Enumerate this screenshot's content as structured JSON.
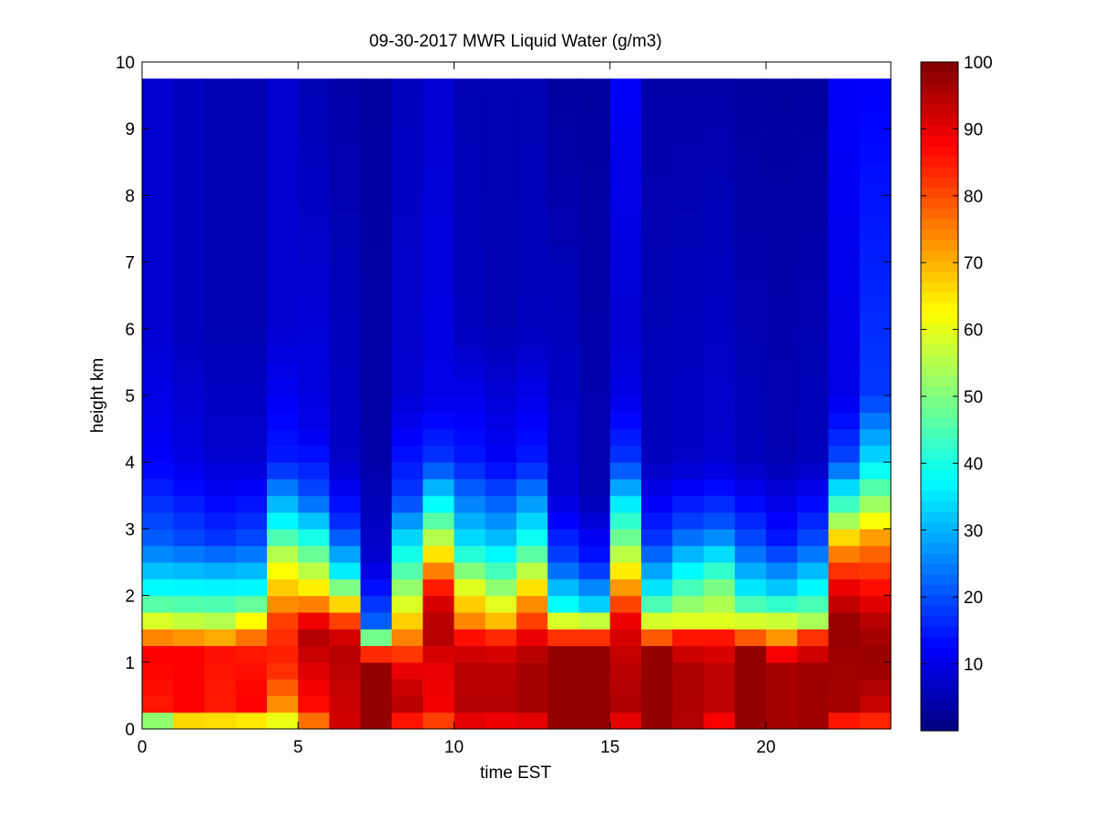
{
  "chart_data": {
    "type": "heatmap",
    "title": "09-30-2017 MWR Liquid Water (g/m3)",
    "xlabel": "time EST",
    "ylabel": "height km",
    "xlim": [
      0,
      24
    ],
    "ylim": [
      0,
      10
    ],
    "x_ticks": [
      0,
      5,
      10,
      15,
      20
    ],
    "y_ticks": [
      0,
      1,
      2,
      3,
      4,
      5,
      6,
      7,
      8,
      9,
      10
    ],
    "colorbar": {
      "range": [
        0,
        100
      ],
      "ticks": [
        10,
        20,
        30,
        40,
        50,
        60,
        70,
        80,
        90,
        100
      ],
      "colormap": "jet"
    },
    "grid": false,
    "x_centers": [
      0.5,
      1.5,
      2.5,
      3.5,
      4.5,
      5.5,
      6.5,
      7.5,
      8.5,
      9.5,
      10.5,
      11.5,
      12.5,
      13.5,
      14.5,
      15.5,
      16.5,
      17.5,
      18.5,
      19.5,
      20.5,
      21.5,
      22.5,
      23.5
    ],
    "data_top_km": 9.75,
    "columns": [
      {
        "p": [
          [
            0,
            12
          ],
          [
            0.1,
            45
          ],
          [
            0.25,
            85
          ],
          [
            1.2,
            88
          ],
          [
            1.5,
            65
          ],
          [
            2.0,
            40
          ],
          [
            2.8,
            22
          ],
          [
            4.0,
            12
          ],
          [
            6.0,
            8
          ],
          [
            9.75,
            8
          ]
        ]
      },
      {
        "p": [
          [
            0,
            38
          ],
          [
            0.1,
            62
          ],
          [
            0.25,
            88
          ],
          [
            1.2,
            88
          ],
          [
            1.5,
            62
          ],
          [
            2.0,
            40
          ],
          [
            2.8,
            20
          ],
          [
            4.0,
            10
          ],
          [
            6.0,
            6
          ],
          [
            9.75,
            6
          ]
        ]
      },
      {
        "p": [
          [
            0,
            38
          ],
          [
            0.1,
            62
          ],
          [
            0.25,
            85
          ],
          [
            1.2,
            86
          ],
          [
            1.5,
            60
          ],
          [
            2.0,
            40
          ],
          [
            2.8,
            18
          ],
          [
            4.0,
            8
          ],
          [
            6.0,
            5
          ],
          [
            9.75,
            5
          ]
        ]
      },
      {
        "p": [
          [
            0,
            35
          ],
          [
            0.1,
            60
          ],
          [
            0.25,
            88
          ],
          [
            1.2,
            85
          ],
          [
            1.5,
            70
          ],
          [
            2.0,
            40
          ],
          [
            2.8,
            20
          ],
          [
            4.0,
            8
          ],
          [
            6.0,
            5
          ],
          [
            9.75,
            5
          ]
        ]
      },
      {
        "p": [
          [
            0,
            45
          ],
          [
            0.2,
            70
          ],
          [
            0.6,
            78
          ],
          [
            1.0,
            85
          ],
          [
            1.6,
            82
          ],
          [
            2.0,
            70
          ],
          [
            2.5,
            60
          ],
          [
            3.0,
            40
          ],
          [
            4.0,
            15
          ],
          [
            6.0,
            8
          ],
          [
            9.75,
            8
          ]
        ]
      },
      {
        "p": [
          [
            0,
            35
          ],
          [
            0.15,
            85
          ],
          [
            0.8,
            90
          ],
          [
            1.5,
            96
          ],
          [
            2.0,
            68
          ],
          [
            2.8,
            42
          ],
          [
            3.5,
            20
          ],
          [
            4.5,
            10
          ],
          [
            9.75,
            5
          ]
        ]
      },
      {
        "p": [
          [
            0,
            50
          ],
          [
            0.1,
            92
          ],
          [
            1.3,
            95
          ],
          [
            1.7,
            78
          ],
          [
            2.3,
            38
          ],
          [
            3.0,
            18
          ],
          [
            4.0,
            7
          ],
          [
            9.75,
            4
          ]
        ]
      },
      {
        "p": [
          [
            0,
            65
          ],
          [
            0.1,
            98
          ],
          [
            1.0,
            98
          ],
          [
            1.2,
            75
          ],
          [
            1.4,
            45
          ],
          [
            1.6,
            22
          ],
          [
            2.5,
            8
          ],
          [
            4.0,
            4
          ],
          [
            9.75,
            3
          ]
        ]
      },
      {
        "p": [
          [
            0,
            70
          ],
          [
            0.2,
            95
          ],
          [
            0.8,
            92
          ],
          [
            1.2,
            80
          ],
          [
            1.6,
            68
          ],
          [
            2.0,
            55
          ],
          [
            2.6,
            40
          ],
          [
            3.5,
            18
          ],
          [
            5.0,
            8
          ],
          [
            9.75,
            6
          ]
        ]
      },
      {
        "p": [
          [
            0,
            70
          ],
          [
            0.2,
            88
          ],
          [
            1.0,
            90
          ],
          [
            1.5,
            96
          ],
          [
            2.0,
            90
          ],
          [
            2.5,
            70
          ],
          [
            3.0,
            50
          ],
          [
            4.0,
            18
          ],
          [
            5.0,
            10
          ],
          [
            9.75,
            8
          ]
        ]
      },
      {
        "p": [
          [
            0,
            65
          ],
          [
            0.15,
            95
          ],
          [
            1.0,
            94
          ],
          [
            1.3,
            90
          ],
          [
            1.6,
            75
          ],
          [
            2.0,
            64
          ],
          [
            2.8,
            35
          ],
          [
            4.0,
            15
          ],
          [
            6.0,
            6
          ],
          [
            9.75,
            5
          ]
        ]
      },
      {
        "p": [
          [
            0,
            60
          ],
          [
            0.15,
            95
          ],
          [
            1.0,
            94
          ],
          [
            1.3,
            88
          ],
          [
            1.6,
            70
          ],
          [
            2.0,
            55
          ],
          [
            2.8,
            32
          ],
          [
            4.0,
            12
          ],
          [
            6.0,
            5
          ],
          [
            9.75,
            5
          ]
        ]
      },
      {
        "p": [
          [
            0,
            60
          ],
          [
            0.15,
            96
          ],
          [
            1.0,
            96
          ],
          [
            1.3,
            92
          ],
          [
            1.6,
            82
          ],
          [
            2.0,
            70
          ],
          [
            2.8,
            40
          ],
          [
            4.0,
            15
          ],
          [
            6.0,
            6
          ],
          [
            9.75,
            5
          ]
        ]
      },
      {
        "p": [
          [
            0,
            65
          ],
          [
            0.1,
            98
          ],
          [
            1.2,
            98
          ],
          [
            1.5,
            72
          ],
          [
            1.8,
            40
          ],
          [
            2.5,
            20
          ],
          [
            3.5,
            8
          ],
          [
            9.75,
            3
          ]
        ]
      },
      {
        "p": [
          [
            0,
            65
          ],
          [
            0.1,
            98
          ],
          [
            1.2,
            98
          ],
          [
            1.5,
            72
          ],
          [
            1.8,
            35
          ],
          [
            2.5,
            15
          ],
          [
            3.5,
            5
          ],
          [
            9.75,
            3
          ]
        ]
      },
      {
        "p": [
          [
            0,
            60
          ],
          [
            0.15,
            96
          ],
          [
            1.0,
            94
          ],
          [
            1.6,
            90
          ],
          [
            2.2,
            70
          ],
          [
            2.8,
            50
          ],
          [
            3.3,
            38
          ],
          [
            4.0,
            18
          ],
          [
            5.0,
            10
          ],
          [
            6.0,
            8
          ],
          [
            9.75,
            12
          ]
        ]
      },
      {
        "p": [
          [
            0,
            70
          ],
          [
            0.1,
            98
          ],
          [
            1.2,
            98
          ],
          [
            1.5,
            65
          ],
          [
            2.0,
            38
          ],
          [
            2.8,
            18
          ],
          [
            4.0,
            6
          ],
          [
            9.75,
            4
          ]
        ]
      },
      {
        "p": [
          [
            0,
            65
          ],
          [
            0.1,
            95
          ],
          [
            1.0,
            96
          ],
          [
            1.4,
            85
          ],
          [
            1.6,
            60
          ],
          [
            2.2,
            42
          ],
          [
            3.0,
            20
          ],
          [
            4.0,
            7
          ],
          [
            9.75,
            4
          ]
        ]
      },
      {
        "p": [
          [
            0,
            60
          ],
          [
            0.15,
            94
          ],
          [
            1.0,
            94
          ],
          [
            1.4,
            85
          ],
          [
            1.6,
            60
          ],
          [
            2.2,
            48
          ],
          [
            3.0,
            22
          ],
          [
            4.0,
            8
          ],
          [
            9.75,
            4
          ]
        ]
      },
      {
        "p": [
          [
            0,
            50
          ],
          [
            0.1,
            98
          ],
          [
            1.2,
            98
          ],
          [
            1.5,
            65
          ],
          [
            2.0,
            38
          ],
          [
            2.8,
            20
          ],
          [
            4.0,
            6
          ],
          [
            9.75,
            3
          ]
        ]
      },
      {
        "p": [
          [
            0,
            55
          ],
          [
            0.1,
            96
          ],
          [
            1.0,
            96
          ],
          [
            1.5,
            65
          ],
          [
            2.0,
            35
          ],
          [
            2.8,
            15
          ],
          [
            4.0,
            5
          ],
          [
            9.75,
            3
          ]
        ]
      },
      {
        "p": [
          [
            0,
            55
          ],
          [
            0.1,
            97
          ],
          [
            1.0,
            97
          ],
          [
            1.4,
            82
          ],
          [
            1.6,
            55
          ],
          [
            2.0,
            40
          ],
          [
            2.8,
            20
          ],
          [
            4.0,
            6
          ],
          [
            9.75,
            3
          ]
        ]
      },
      {
        "p": [
          [
            0,
            68
          ],
          [
            0.2,
            96
          ],
          [
            1.0,
            97
          ],
          [
            1.6,
            98
          ],
          [
            2.2,
            88
          ],
          [
            2.8,
            70
          ],
          [
            3.2,
            50
          ],
          [
            4.0,
            20
          ],
          [
            5.0,
            10
          ],
          [
            9.75,
            12
          ]
        ]
      },
      {
        "p": [
          [
            0,
            70
          ],
          [
            0.2,
            92
          ],
          [
            1.0,
            98
          ],
          [
            1.6,
            95
          ],
          [
            2.2,
            85
          ],
          [
            2.8,
            75
          ],
          [
            3.3,
            55
          ],
          [
            4.0,
            35
          ],
          [
            5.0,
            18
          ],
          [
            9.75,
            12
          ]
        ]
      }
    ]
  }
}
